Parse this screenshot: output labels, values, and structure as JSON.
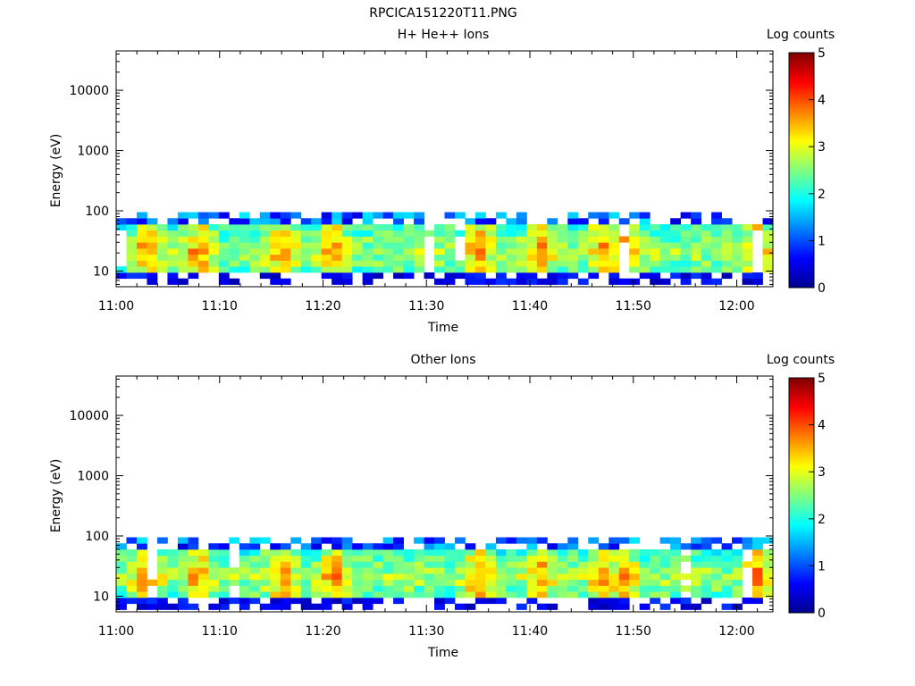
{
  "figure": {
    "title": "RPCICA151220T11.PNG"
  },
  "colorscale": {
    "stops": [
      "#00008f",
      "#0000ff",
      "#0080ff",
      "#00ffff",
      "#80ff80",
      "#ffff00",
      "#ff8000",
      "#ff0000",
      "#800000"
    ]
  },
  "chart_data": [
    {
      "type": "heatmap",
      "title": "H+ He++ Ions",
      "xlabel": "Time",
      "ylabel": "Energy (eV)",
      "xticks": [
        "11:00",
        "11:10",
        "11:20",
        "11:30",
        "11:40",
        "11:50",
        "12:00"
      ],
      "xtick_minutes": [
        0,
        10,
        20,
        30,
        40,
        50,
        60
      ],
      "xlim_minutes": [
        0,
        63.5
      ],
      "yscale": "log",
      "ylim": [
        5.5,
        45000
      ],
      "yticks": [
        10,
        100,
        1000,
        10000
      ],
      "ytick_labels": [
        "10",
        "100",
        "1000",
        "10000"
      ],
      "colorbar": {
        "label": "Log counts",
        "range": [
          0,
          5
        ],
        "ticks": [
          "0",
          "1",
          "2",
          "3",
          "4",
          "5"
        ]
      },
      "grid": false,
      "energy_range_ev": [
        6,
        95
      ],
      "time_bins": 64,
      "energy_bins": 12,
      "peak_activity_minutes": [
        3,
        8,
        16,
        21,
        35,
        41,
        47,
        49,
        62
      ]
    },
    {
      "type": "heatmap",
      "title": "Other Ions",
      "xlabel": "Time",
      "ylabel": "Energy (eV)",
      "xticks": [
        "11:00",
        "11:10",
        "11:20",
        "11:30",
        "11:40",
        "11:50",
        "12:00"
      ],
      "xtick_minutes": [
        0,
        10,
        20,
        30,
        40,
        50,
        60
      ],
      "xlim_minutes": [
        0,
        63.5
      ],
      "yscale": "log",
      "ylim": [
        5.5,
        45000
      ],
      "yticks": [
        10,
        100,
        1000,
        10000
      ],
      "ytick_labels": [
        "10",
        "100",
        "1000",
        "10000"
      ],
      "colorbar": {
        "label": "Log counts",
        "range": [
          0,
          5
        ],
        "ticks": [
          "0",
          "1",
          "2",
          "3",
          "4",
          "5"
        ]
      },
      "grid": false,
      "energy_range_ev": [
        6,
        95
      ],
      "time_bins": 64,
      "energy_bins": 12,
      "peak_activity_minutes": [
        3,
        8,
        16,
        21,
        35,
        41,
        47,
        49,
        62
      ]
    }
  ]
}
